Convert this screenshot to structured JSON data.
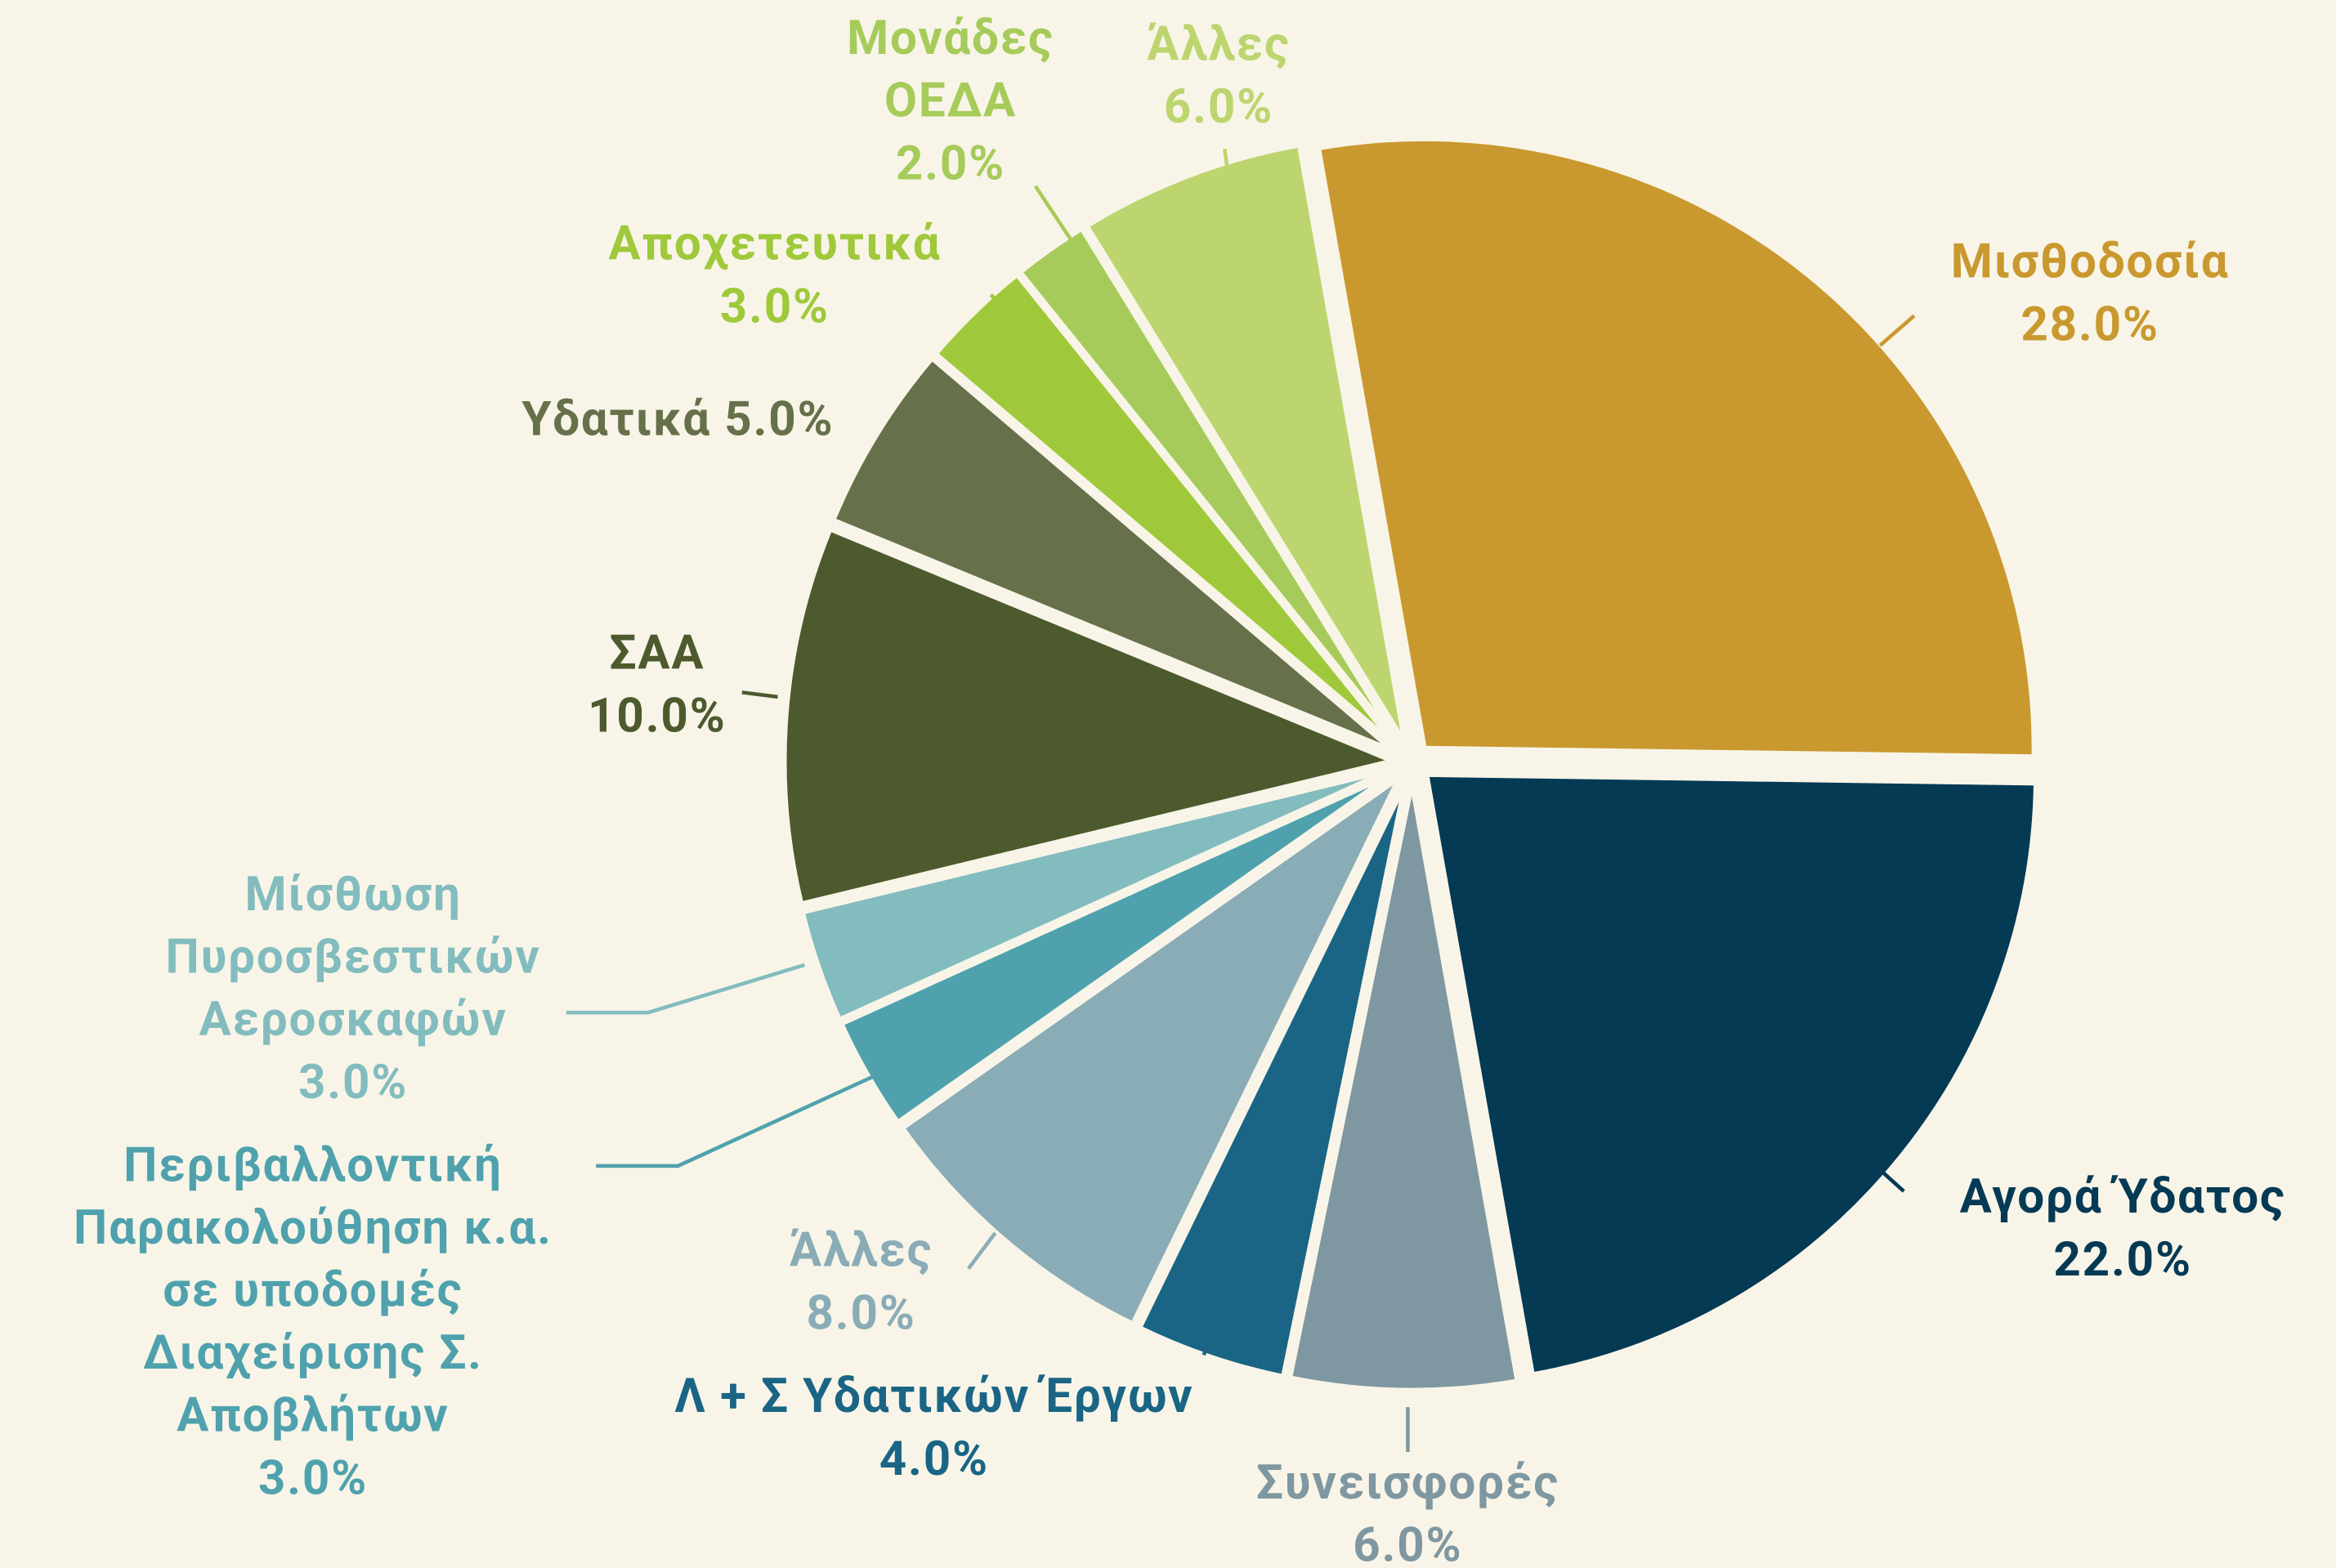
{
  "chart_data": {
    "type": "pie",
    "categories": [
      "Μισθοδοσία",
      "Αγορά Ύδατος",
      "Συνεισφορές",
      "Λ + Σ Υδατικών Έργων",
      "Άλλες",
      "Περιβαλλοντική\nΠαρακολούθηση κ.α.\nσε υποδομές\nΔιαχείρισης Σ.\nΑποβλήτων",
      "Μίσθωση\nΠυροσβεστικών\nΑεροσκαφών",
      "ΣΑΑ",
      "Υδατικά",
      "Αποχετευτικά",
      "Μονάδες\nΟΕΔΑ",
      "Άλλες"
    ],
    "values": [
      28,
      22,
      6,
      4,
      8,
      3,
      3,
      10,
      5,
      3,
      2,
      6
    ],
    "value_labels": [
      "28.0%",
      "22.0%",
      "6.0%",
      "4.0%",
      "8.0%",
      "3.0%",
      "3.0%",
      "10.0%",
      "5.0%",
      "3.0%",
      "2.0%",
      "6.0%"
    ],
    "colors": [
      "#c9992f",
      "#053a55",
      "#7f97a0",
      "#1a6585",
      "#8aacb6",
      "#4fa2ad",
      "#82bcbe",
      "#4c5a2e",
      "#66704a",
      "#9fc93b",
      "#a6cb5a",
      "#bcd56f"
    ]
  }
}
